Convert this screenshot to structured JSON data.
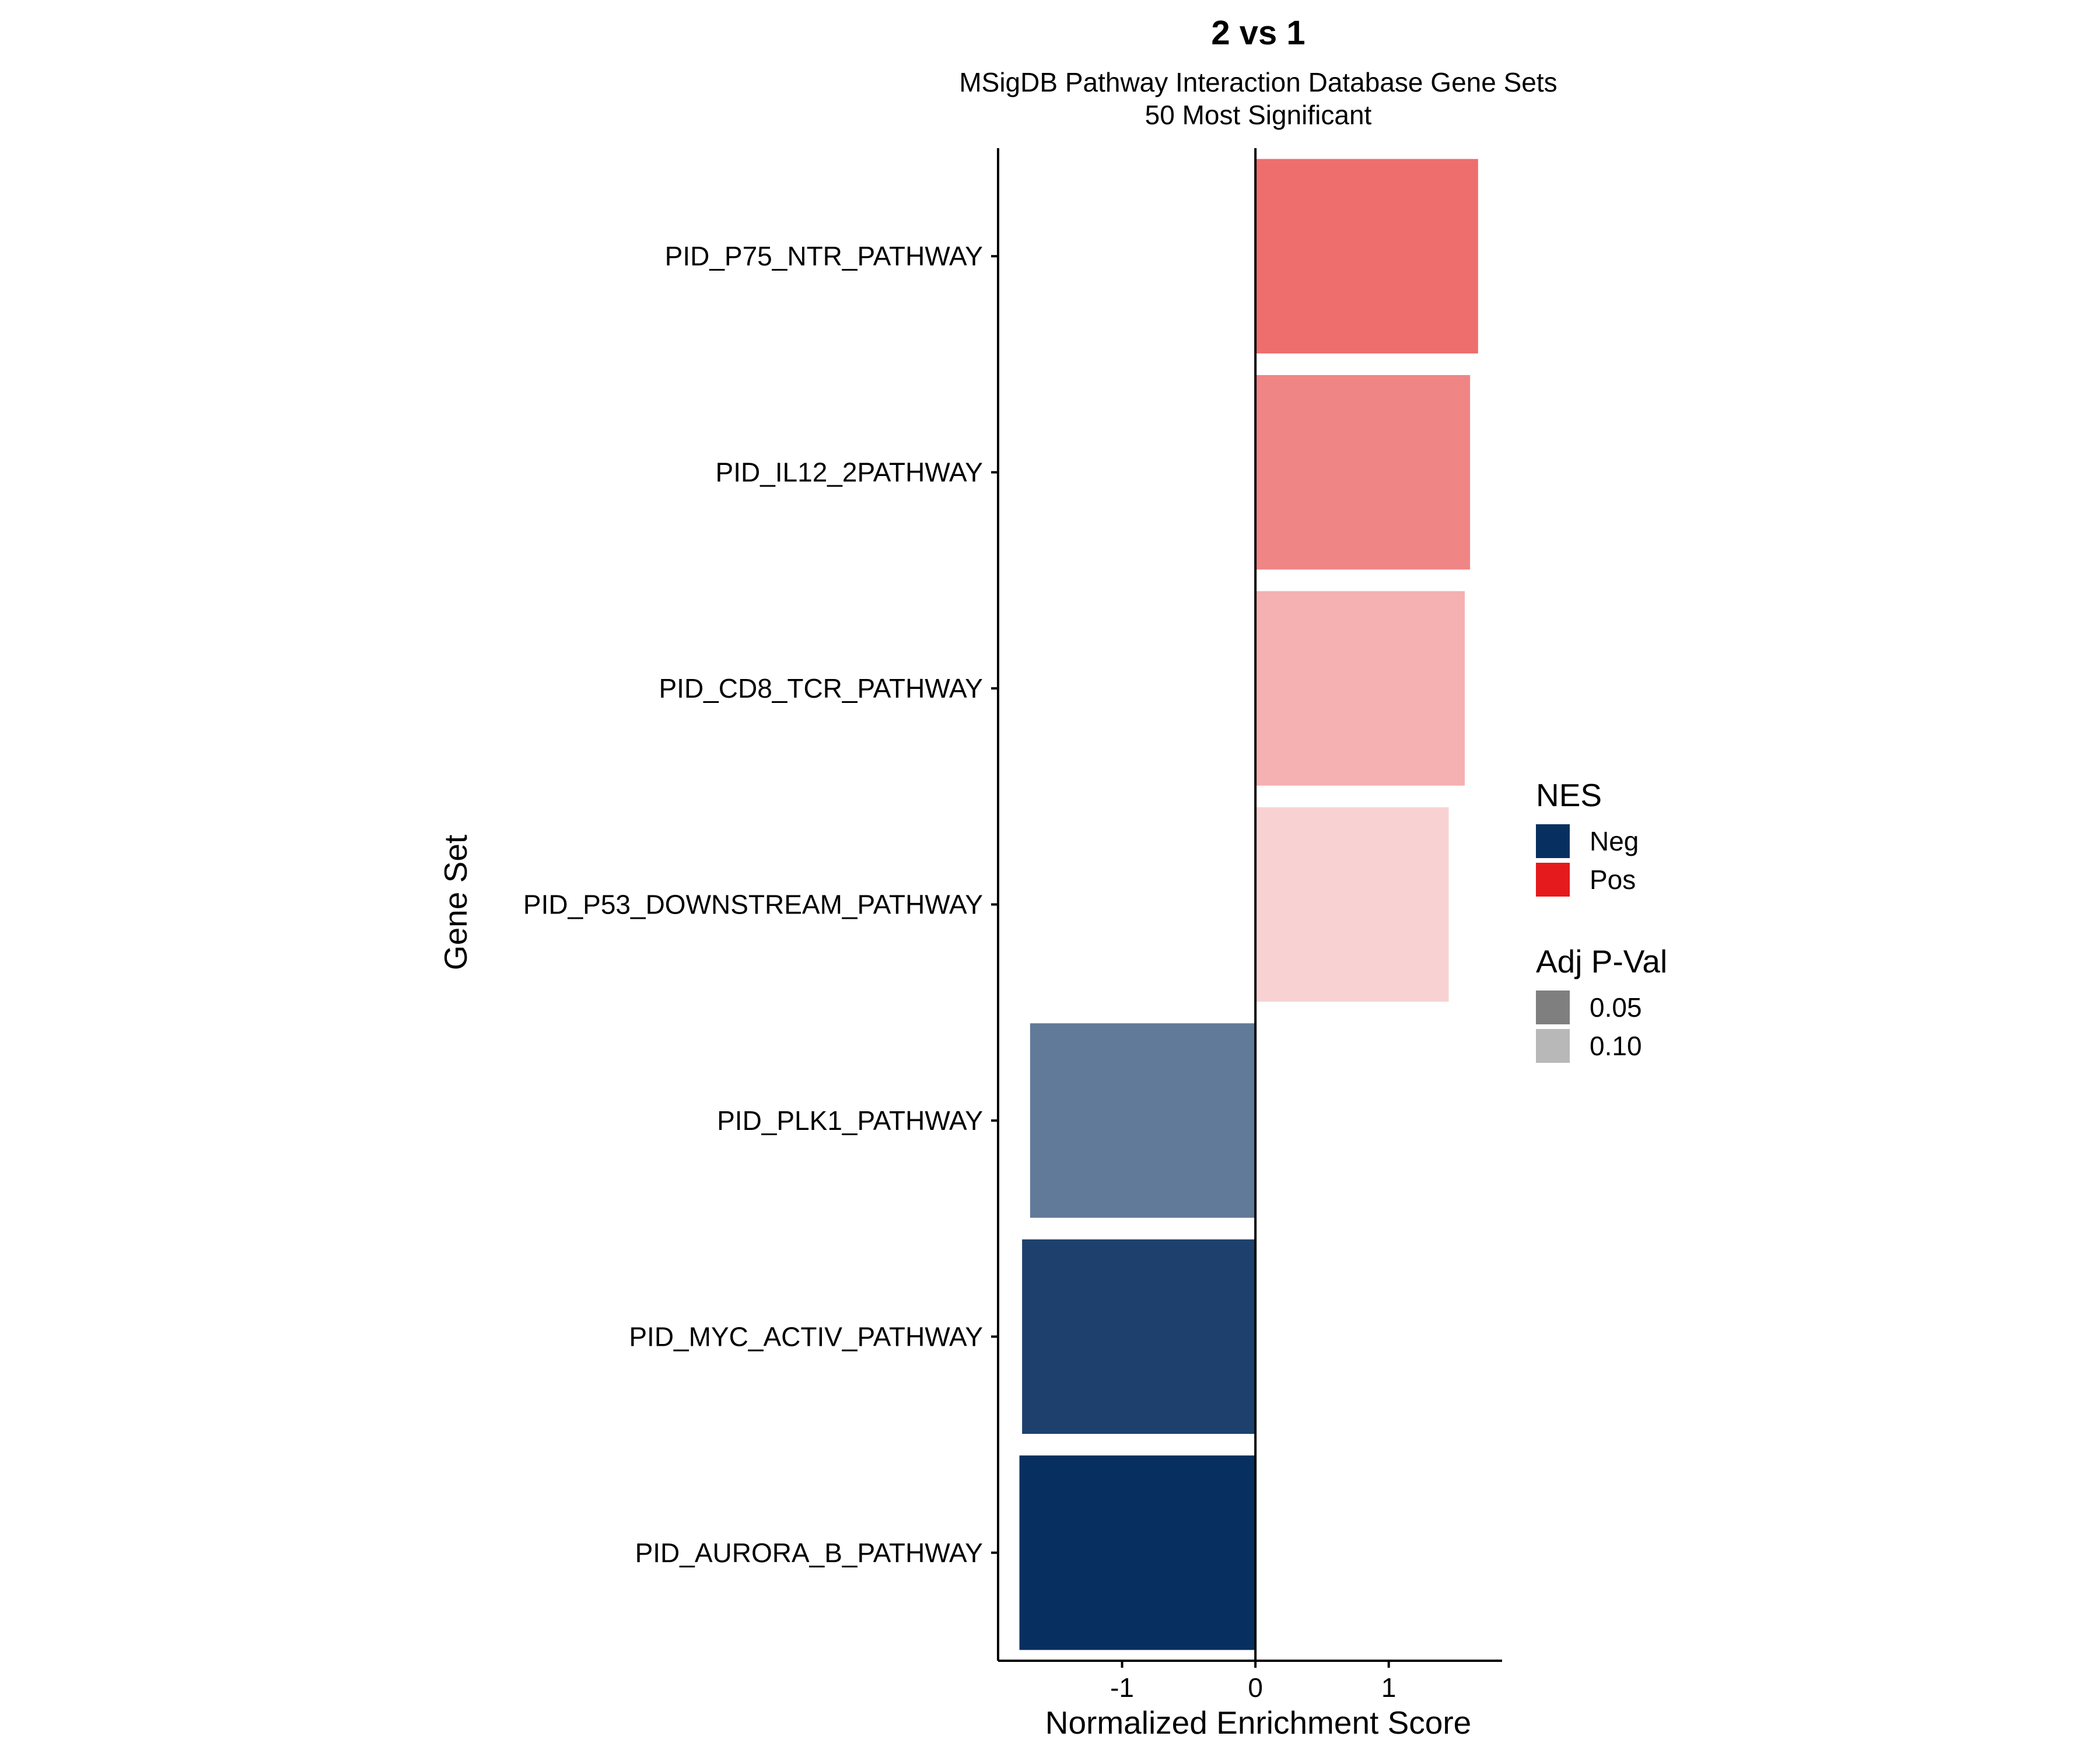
{
  "chart_data": {
    "type": "bar",
    "orientation": "horizontal",
    "title": "2 vs 1",
    "subtitle_lines": [
      "MSigDB Pathway Interaction Database Gene Sets",
      "50 Most Significant"
    ],
    "xlabel": "Normalized Enrichment Score",
    "ylabel": "Gene Set",
    "xlim": [
      -1.93,
      1.85
    ],
    "xticks": [
      {
        "value": -1,
        "label": "-1"
      },
      {
        "value": 0,
        "label": "0"
      },
      {
        "value": 1,
        "label": "1"
      }
    ],
    "categories": [
      "PID_P75_NTR_PATHWAY",
      "PID_IL12_2PATHWAY",
      "PID_CD8_TCR_PATHWAY",
      "PID_P53_DOWNSTREAM_PATHWAY",
      "PID_PLK1_PATHWAY",
      "PID_MYC_ACTIV_PATHWAY",
      "PID_AURORA_B_PATHWAY"
    ],
    "values": [
      1.67,
      1.61,
      1.57,
      1.45,
      -1.69,
      -1.75,
      -1.77
    ],
    "bar_colors": [
      "#EE6E6E",
      "#F08585",
      "#F5B0B1",
      "#F8D2D3",
      "#627A99",
      "#1D416C",
      "#073060"
    ],
    "grid": false,
    "legend": {
      "placement": "right",
      "groups": [
        {
          "title": "NES",
          "items": [
            {
              "label": "Neg",
              "color": "#073060"
            },
            {
              "label": "Pos",
              "color": "#E41A1C"
            }
          ]
        },
        {
          "title": "Adj P-Val",
          "items": [
            {
              "label": "0.05",
              "color": "#7F7F7F"
            },
            {
              "label": "0.10",
              "color": "#B8B8B8"
            }
          ]
        }
      ]
    }
  }
}
